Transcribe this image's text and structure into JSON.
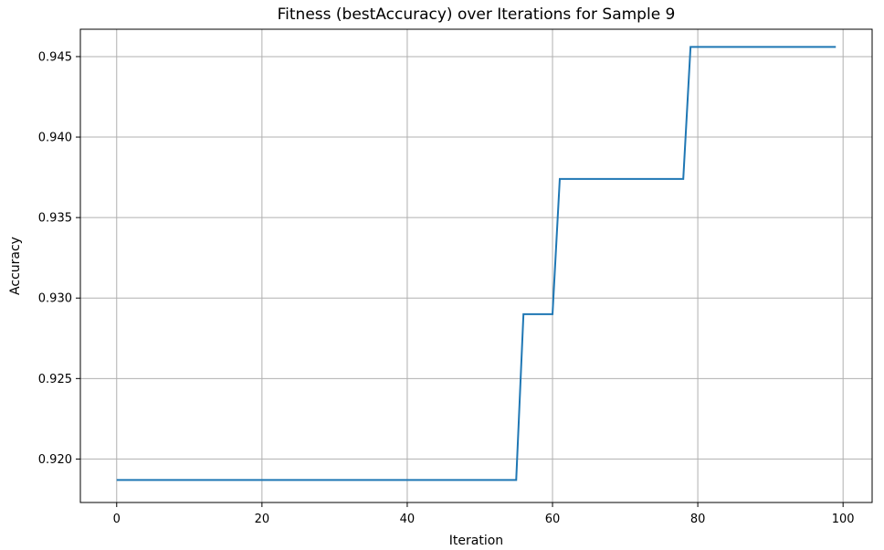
{
  "chart_data": {
    "type": "line",
    "title": "Fitness (bestAccuracy) over Iterations for Sample 9",
    "xlabel": "Iteration",
    "ylabel": "Accuracy",
    "xlim": [
      -5,
      104
    ],
    "ylim": [
      0.9173,
      0.9467
    ],
    "xticks": [
      0,
      20,
      40,
      60,
      80,
      100
    ],
    "yticks": [
      0.92,
      0.925,
      0.93,
      0.935,
      0.94,
      0.945
    ],
    "xtick_labels": [
      "0",
      "20",
      "40",
      "60",
      "80",
      "100"
    ],
    "ytick_labels": [
      "0.920",
      "0.925",
      "0.930",
      "0.935",
      "0.940",
      "0.945"
    ],
    "grid": true,
    "series": [
      {
        "color": "#1f77b4",
        "x": [
          0,
          55,
          56,
          60,
          61,
          78,
          79,
          99
        ],
        "y": [
          0.9187,
          0.9187,
          0.929,
          0.929,
          0.9374,
          0.9374,
          0.9456,
          0.9456
        ]
      }
    ]
  }
}
